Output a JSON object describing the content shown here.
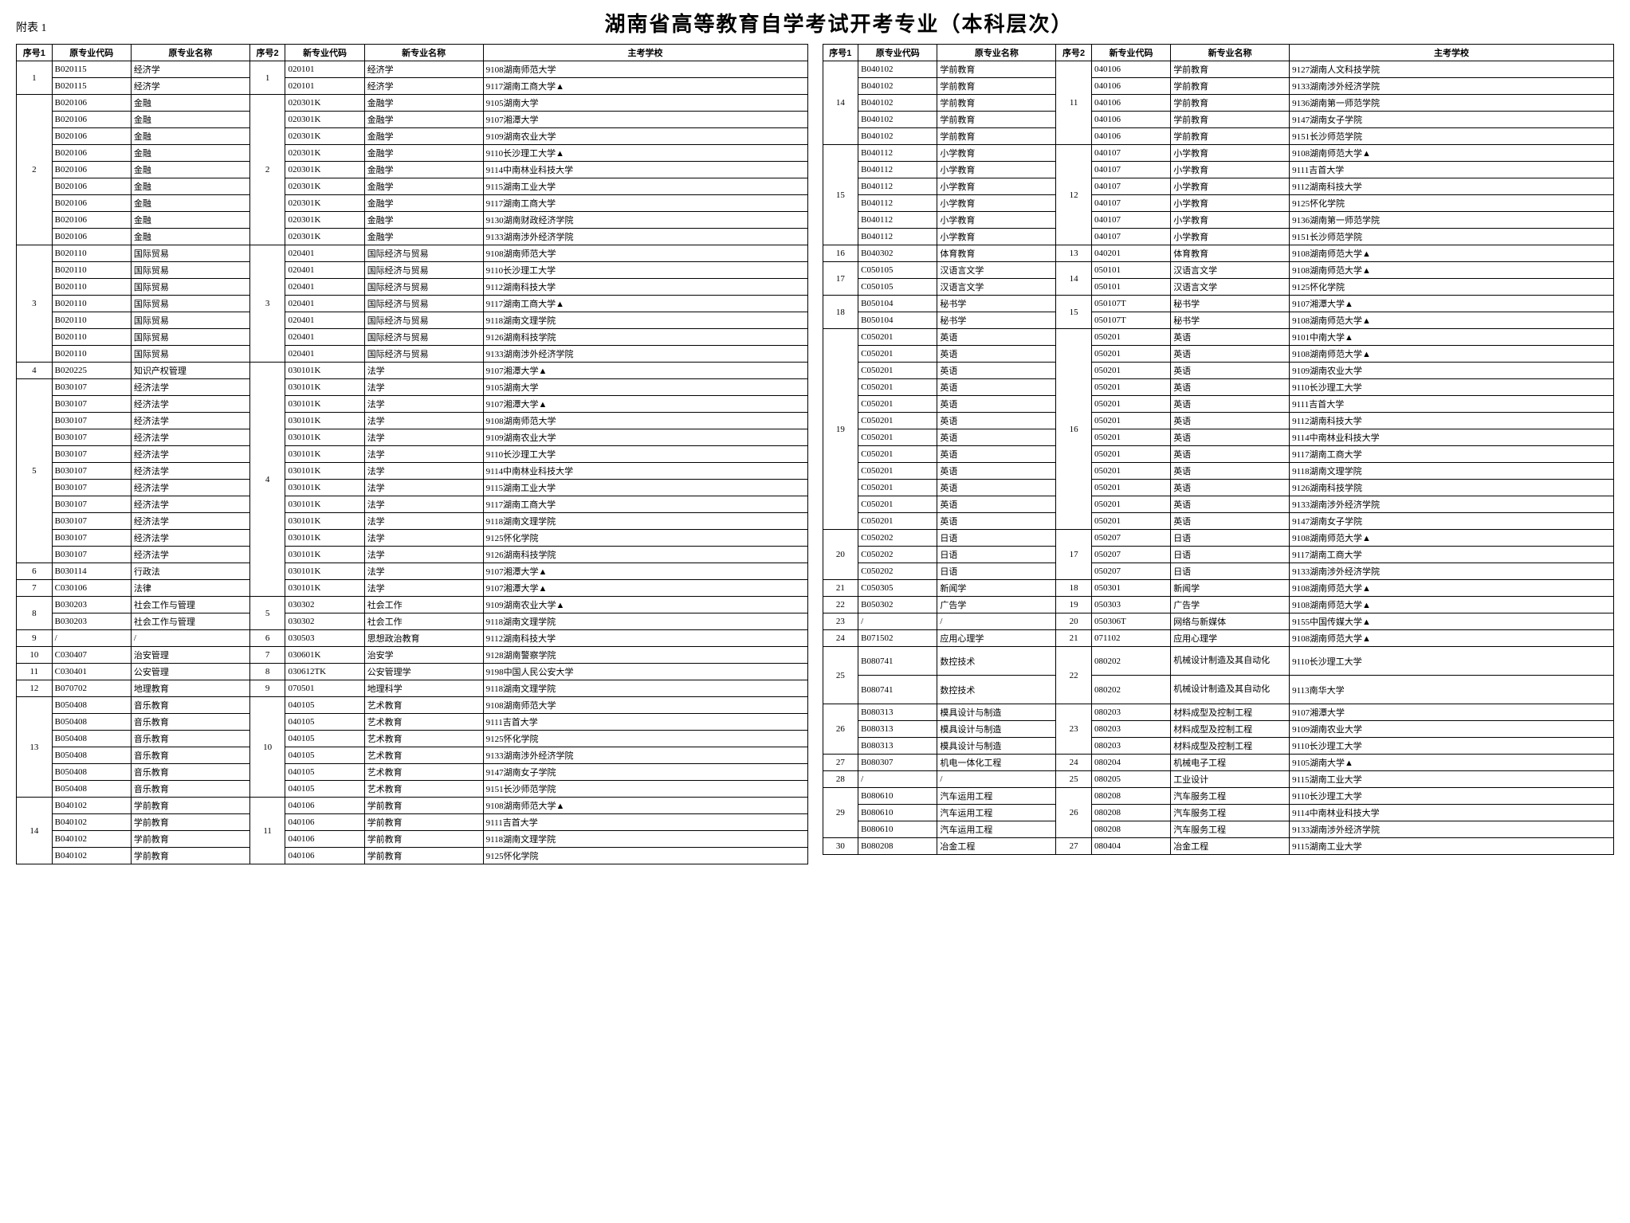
{
  "appendix_label": "附表 1",
  "title": "湖南省高等教育自学考试开考专业（本科层次）",
  "headers": {
    "seq1": "序号1",
    "oldCode": "原专业代码",
    "oldName": "原专业名称",
    "seq2": "序号2",
    "newCode": "新专业代码",
    "newName": "新专业名称",
    "school": "主考学校"
  },
  "left": [
    {
      "s1": "1",
      "r1": 2,
      "oc": "B020115",
      "on": "经济学",
      "s2": "1",
      "r2": 2,
      "nc": "020101",
      "nn": "经济学",
      "sc": "9108湖南师范大学"
    },
    {
      "oc": "B020115",
      "on": "经济学",
      "nc": "020101",
      "nn": "经济学",
      "sc": "9117湖南工商大学▲"
    },
    {
      "s1": "2",
      "r1": 9,
      "oc": "B020106",
      "on": "金融",
      "s2": "2",
      "r2": 9,
      "nc": "020301K",
      "nn": "金融学",
      "sc": "9105湖南大学"
    },
    {
      "oc": "B020106",
      "on": "金融",
      "nc": "020301K",
      "nn": "金融学",
      "sc": "9107湘潭大学"
    },
    {
      "oc": "B020106",
      "on": "金融",
      "nc": "020301K",
      "nn": "金融学",
      "sc": "9109湖南农业大学"
    },
    {
      "oc": "B020106",
      "on": "金融",
      "nc": "020301K",
      "nn": "金融学",
      "sc": "9110长沙理工大学▲"
    },
    {
      "oc": "B020106",
      "on": "金融",
      "nc": "020301K",
      "nn": "金融学",
      "sc": "9114中南林业科技大学"
    },
    {
      "oc": "B020106",
      "on": "金融",
      "nc": "020301K",
      "nn": "金融学",
      "sc": "9115湖南工业大学"
    },
    {
      "oc": "B020106",
      "on": "金融",
      "nc": "020301K",
      "nn": "金融学",
      "sc": "9117湖南工商大学"
    },
    {
      "oc": "B020106",
      "on": "金融",
      "nc": "020301K",
      "nn": "金融学",
      "sc": "9130湖南财政经济学院"
    },
    {
      "oc": "B020106",
      "on": "金融",
      "nc": "020301K",
      "nn": "金融学",
      "sc": "9133湖南涉外经济学院"
    },
    {
      "s1": "3",
      "r1": 7,
      "oc": "B020110",
      "on": "国际贸易",
      "s2": "3",
      "r2": 7,
      "nc": "020401",
      "nn": "国际经济与贸易",
      "sc": "9108湖南师范大学"
    },
    {
      "oc": "B020110",
      "on": "国际贸易",
      "nc": "020401",
      "nn": "国际经济与贸易",
      "sc": "9110长沙理工大学"
    },
    {
      "oc": "B020110",
      "on": "国际贸易",
      "nc": "020401",
      "nn": "国际经济与贸易",
      "sc": "9112湖南科技大学"
    },
    {
      "oc": "B020110",
      "on": "国际贸易",
      "nc": "020401",
      "nn": "国际经济与贸易",
      "sc": "9117湖南工商大学▲"
    },
    {
      "oc": "B020110",
      "on": "国际贸易",
      "nc": "020401",
      "nn": "国际经济与贸易",
      "sc": "9118湖南文理学院"
    },
    {
      "oc": "B020110",
      "on": "国际贸易",
      "nc": "020401",
      "nn": "国际经济与贸易",
      "sc": "9126湖南科技学院"
    },
    {
      "oc": "B020110",
      "on": "国际贸易",
      "nc": "020401",
      "nn": "国际经济与贸易",
      "sc": "9133湖南涉外经济学院"
    },
    {
      "s1": "4",
      "r1": 1,
      "oc": "B020225",
      "on": "知识产权管理",
      "s2": "4",
      "r2": 14,
      "nc": "030101K",
      "nn": "法学",
      "sc": "9107湘潭大学▲"
    },
    {
      "s1": "5",
      "r1": 11,
      "oc": "B030107",
      "on": "经济法学",
      "nc": "030101K",
      "nn": "法学",
      "sc": "9105湖南大学"
    },
    {
      "oc": "B030107",
      "on": "经济法学",
      "nc": "030101K",
      "nn": "法学",
      "sc": "9107湘潭大学▲"
    },
    {
      "oc": "B030107",
      "on": "经济法学",
      "nc": "030101K",
      "nn": "法学",
      "sc": "9108湖南师范大学"
    },
    {
      "oc": "B030107",
      "on": "经济法学",
      "nc": "030101K",
      "nn": "法学",
      "sc": "9109湖南农业大学"
    },
    {
      "oc": "B030107",
      "on": "经济法学",
      "nc": "030101K",
      "nn": "法学",
      "sc": "9110长沙理工大学"
    },
    {
      "oc": "B030107",
      "on": "经济法学",
      "nc": "030101K",
      "nn": "法学",
      "sc": "9114中南林业科技大学"
    },
    {
      "oc": "B030107",
      "on": "经济法学",
      "nc": "030101K",
      "nn": "法学",
      "sc": "9115湖南工业大学"
    },
    {
      "oc": "B030107",
      "on": "经济法学",
      "nc": "030101K",
      "nn": "法学",
      "sc": "9117湖南工商大学"
    },
    {
      "oc": "B030107",
      "on": "经济法学",
      "nc": "030101K",
      "nn": "法学",
      "sc": "9118湖南文理学院"
    },
    {
      "oc": "B030107",
      "on": "经济法学",
      "nc": "030101K",
      "nn": "法学",
      "sc": "9125怀化学院"
    },
    {
      "oc": "B030107",
      "on": "经济法学",
      "nc": "030101K",
      "nn": "法学",
      "sc": "9126湖南科技学院"
    },
    {
      "s1": "6",
      "r1": 1,
      "oc": "B030114",
      "on": "行政法",
      "nc": "030101K",
      "nn": "法学",
      "sc": "9107湘潭大学▲"
    },
    {
      "s1": "7",
      "r1": 1,
      "oc": "C030106",
      "on": "法律",
      "nc": "030101K",
      "nn": "法学",
      "sc": "9107湘潭大学▲"
    },
    {
      "s1": "8",
      "r1": 2,
      "oc": "B030203",
      "on": "社会工作与管理",
      "s2": "5",
      "r2": 2,
      "nc": "030302",
      "nn": "社会工作",
      "sc": "9109湖南农业大学▲"
    },
    {
      "oc": "B030203",
      "on": "社会工作与管理",
      "nc": "030302",
      "nn": "社会工作",
      "sc": "9118湖南文理学院"
    },
    {
      "s1": "9",
      "r1": 1,
      "oc": "/",
      "on": "/",
      "s2": "6",
      "r2": 1,
      "nc": "030503",
      "nn": "思想政治教育",
      "sc": "9112湖南科技大学"
    },
    {
      "s1": "10",
      "r1": 1,
      "oc": "C030407",
      "on": "治安管理",
      "s2": "7",
      "r2": 1,
      "nc": "030601K",
      "nn": "治安学",
      "sc": "9128湖南警察学院"
    },
    {
      "s1": "11",
      "r1": 1,
      "oc": "C030401",
      "on": "公安管理",
      "s2": "8",
      "r2": 1,
      "nc": "030612TK",
      "nn": "公安管理学",
      "sc": "9198中国人民公安大学"
    },
    {
      "s1": "12",
      "r1": 1,
      "oc": "B070702",
      "on": "地理教育",
      "s2": "9",
      "r2": 1,
      "nc": "070501",
      "nn": "地理科学",
      "sc": "9118湖南文理学院"
    },
    {
      "s1": "13",
      "r1": 6,
      "oc": "B050408",
      "on": "音乐教育",
      "s2": "10",
      "r2": 6,
      "nc": "040105",
      "nn": "艺术教育",
      "sc": "9108湖南师范大学"
    },
    {
      "oc": "B050408",
      "on": "音乐教育",
      "nc": "040105",
      "nn": "艺术教育",
      "sc": "9111吉首大学"
    },
    {
      "oc": "B050408",
      "on": "音乐教育",
      "nc": "040105",
      "nn": "艺术教育",
      "sc": "9125怀化学院"
    },
    {
      "oc": "B050408",
      "on": "音乐教育",
      "nc": "040105",
      "nn": "艺术教育",
      "sc": "9133湖南涉外经济学院"
    },
    {
      "oc": "B050408",
      "on": "音乐教育",
      "nc": "040105",
      "nn": "艺术教育",
      "sc": "9147湖南女子学院"
    },
    {
      "oc": "B050408",
      "on": "音乐教育",
      "nc": "040105",
      "nn": "艺术教育",
      "sc": "9151长沙师范学院"
    },
    {
      "s1": "14",
      "r1": 4,
      "oc": "B040102",
      "on": "学前教育",
      "s2": "11",
      "r2": 4,
      "nc": "040106",
      "nn": "学前教育",
      "sc": "9108湖南师范大学▲"
    },
    {
      "oc": "B040102",
      "on": "学前教育",
      "nc": "040106",
      "nn": "学前教育",
      "sc": "9111吉首大学"
    },
    {
      "oc": "B040102",
      "on": "学前教育",
      "nc": "040106",
      "nn": "学前教育",
      "sc": "9118湖南文理学院"
    },
    {
      "oc": "B040102",
      "on": "学前教育",
      "nc": "040106",
      "nn": "学前教育",
      "sc": "9125怀化学院"
    }
  ],
  "right": [
    {
      "s1": "14",
      "r1": 5,
      "oc": "B040102",
      "on": "学前教育",
      "s2": "11",
      "r2": 5,
      "nc": "040106",
      "nn": "学前教育",
      "sc": "9127湖南人文科技学院"
    },
    {
      "oc": "B040102",
      "on": "学前教育",
      "nc": "040106",
      "nn": "学前教育",
      "sc": "9133湖南涉外经济学院"
    },
    {
      "oc": "B040102",
      "on": "学前教育",
      "nc": "040106",
      "nn": "学前教育",
      "sc": "9136湖南第一师范学院"
    },
    {
      "oc": "B040102",
      "on": "学前教育",
      "nc": "040106",
      "nn": "学前教育",
      "sc": "9147湖南女子学院"
    },
    {
      "oc": "B040102",
      "on": "学前教育",
      "nc": "040106",
      "nn": "学前教育",
      "sc": "9151长沙师范学院"
    },
    {
      "s1": "15",
      "r1": 6,
      "oc": "B040112",
      "on": "小学教育",
      "s2": "12",
      "r2": 6,
      "nc": "040107",
      "nn": "小学教育",
      "sc": "9108湖南师范大学▲"
    },
    {
      "oc": "B040112",
      "on": "小学教育",
      "nc": "040107",
      "nn": "小学教育",
      "sc": "9111吉首大学"
    },
    {
      "oc": "B040112",
      "on": "小学教育",
      "nc": "040107",
      "nn": "小学教育",
      "sc": "9112湖南科技大学"
    },
    {
      "oc": "B040112",
      "on": "小学教育",
      "nc": "040107",
      "nn": "小学教育",
      "sc": "9125怀化学院"
    },
    {
      "oc": "B040112",
      "on": "小学教育",
      "nc": "040107",
      "nn": "小学教育",
      "sc": "9136湖南第一师范学院"
    },
    {
      "oc": "B040112",
      "on": "小学教育",
      "nc": "040107",
      "nn": "小学教育",
      "sc": "9151长沙师范学院"
    },
    {
      "s1": "16",
      "r1": 1,
      "oc": "B040302",
      "on": "体育教育",
      "s2": "13",
      "r2": 1,
      "nc": "040201",
      "nn": "体育教育",
      "sc": "9108湖南师范大学▲"
    },
    {
      "s1": "17",
      "r1": 2,
      "oc": "C050105",
      "on": "汉语言文学",
      "s2": "14",
      "r2": 2,
      "nc": "050101",
      "nn": "汉语言文学",
      "sc": "9108湖南师范大学▲"
    },
    {
      "oc": "C050105",
      "on": "汉语言文学",
      "nc": "050101",
      "nn": "汉语言文学",
      "sc": "9125怀化学院"
    },
    {
      "s1": "18",
      "r1": 2,
      "oc": "B050104",
      "on": "秘书学",
      "s2": "15",
      "r2": 2,
      "nc": "050107T",
      "nn": "秘书学",
      "sc": "9107湘潭大学▲"
    },
    {
      "oc": "B050104",
      "on": "秘书学",
      "nc": "050107T",
      "nn": "秘书学",
      "sc": "9108湖南师范大学▲"
    },
    {
      "s1": "19",
      "r1": 12,
      "oc": "C050201",
      "on": "英语",
      "s2": "16",
      "r2": 12,
      "nc": "050201",
      "nn": "英语",
      "sc": "9101中南大学▲"
    },
    {
      "oc": "C050201",
      "on": "英语",
      "nc": "050201",
      "nn": "英语",
      "sc": "9108湖南师范大学▲"
    },
    {
      "oc": "C050201",
      "on": "英语",
      "nc": "050201",
      "nn": "英语",
      "sc": "9109湖南农业大学"
    },
    {
      "oc": "C050201",
      "on": "英语",
      "nc": "050201",
      "nn": "英语",
      "sc": "9110长沙理工大学"
    },
    {
      "oc": "C050201",
      "on": "英语",
      "nc": "050201",
      "nn": "英语",
      "sc": "9111吉首大学"
    },
    {
      "oc": "C050201",
      "on": "英语",
      "nc": "050201",
      "nn": "英语",
      "sc": "9112湖南科技大学"
    },
    {
      "oc": "C050201",
      "on": "英语",
      "nc": "050201",
      "nn": "英语",
      "sc": "9114中南林业科技大学"
    },
    {
      "oc": "C050201",
      "on": "英语",
      "nc": "050201",
      "nn": "英语",
      "sc": "9117湖南工商大学"
    },
    {
      "oc": "C050201",
      "on": "英语",
      "nc": "050201",
      "nn": "英语",
      "sc": "9118湖南文理学院"
    },
    {
      "oc": "C050201",
      "on": "英语",
      "nc": "050201",
      "nn": "英语",
      "sc": "9126湖南科技学院"
    },
    {
      "oc": "C050201",
      "on": "英语",
      "nc": "050201",
      "nn": "英语",
      "sc": "9133湖南涉外经济学院"
    },
    {
      "oc": "C050201",
      "on": "英语",
      "nc": "050201",
      "nn": "英语",
      "sc": "9147湖南女子学院"
    },
    {
      "s1": "20",
      "r1": 3,
      "oc": "C050202",
      "on": "日语",
      "s2": "17",
      "r2": 3,
      "nc": "050207",
      "nn": "日语",
      "sc": "9108湖南师范大学▲"
    },
    {
      "oc": "C050202",
      "on": "日语",
      "nc": "050207",
      "nn": "日语",
      "sc": "9117湖南工商大学"
    },
    {
      "oc": "C050202",
      "on": "日语",
      "nc": "050207",
      "nn": "日语",
      "sc": "9133湖南涉外经济学院"
    },
    {
      "s1": "21",
      "r1": 1,
      "oc": "C050305",
      "on": "新闻学",
      "s2": "18",
      "r2": 1,
      "nc": "050301",
      "nn": "新闻学",
      "sc": "9108湖南师范大学▲"
    },
    {
      "s1": "22",
      "r1": 1,
      "oc": "B050302",
      "on": "广告学",
      "s2": "19",
      "r2": 1,
      "nc": "050303",
      "nn": "广告学",
      "sc": "9108湖南师范大学▲"
    },
    {
      "s1": "23",
      "r1": 1,
      "oc": "/",
      "on": "/",
      "s2": "20",
      "r2": 1,
      "nc": "050306T",
      "nn": "网络与新媒体",
      "sc": "9155中国传媒大学▲"
    },
    {
      "s1": "24",
      "r1": 1,
      "oc": "B071502",
      "on": "应用心理学",
      "s2": "21",
      "r2": 1,
      "nc": "071102",
      "nn": "应用心理学",
      "sc": "9108湖南师范大学▲"
    },
    {
      "s1": "25",
      "r1": 2,
      "oc": "B080741",
      "on": "数控技术",
      "s2": "22",
      "r2": 2,
      "nc": "080202",
      "nn": "机械设计制造及其自动化",
      "sc": "9110长沙理工大学",
      "tall": true
    },
    {
      "oc": "B080741",
      "on": "数控技术",
      "nc": "080202",
      "nn": "机械设计制造及其自动化",
      "sc": "9113南华大学",
      "tall": true
    },
    {
      "s1": "26",
      "r1": 3,
      "oc": "B080313",
      "on": "模具设计与制造",
      "s2": "23",
      "r2": 3,
      "nc": "080203",
      "nn": "材料成型及控制工程",
      "sc": "9107湘潭大学"
    },
    {
      "oc": "B080313",
      "on": "模具设计与制造",
      "nc": "080203",
      "nn": "材料成型及控制工程",
      "sc": "9109湖南农业大学"
    },
    {
      "oc": "B080313",
      "on": "模具设计与制造",
      "nc": "080203",
      "nn": "材料成型及控制工程",
      "sc": "9110长沙理工大学"
    },
    {
      "s1": "27",
      "r1": 1,
      "oc": "B080307",
      "on": "机电一体化工程",
      "s2": "24",
      "r2": 1,
      "nc": "080204",
      "nn": "机械电子工程",
      "sc": "9105湖南大学▲"
    },
    {
      "s1": "28",
      "r1": 1,
      "oc": "/",
      "on": "/",
      "s2": "25",
      "r2": 1,
      "nc": "080205",
      "nn": "工业设计",
      "sc": "9115湖南工业大学"
    },
    {
      "s1": "29",
      "r1": 3,
      "oc": "B080610",
      "on": "汽车运用工程",
      "s2": "26",
      "r2": 3,
      "nc": "080208",
      "nn": "汽车服务工程",
      "sc": "9110长沙理工大学"
    },
    {
      "oc": "B080610",
      "on": "汽车运用工程",
      "nc": "080208",
      "nn": "汽车服务工程",
      "sc": "9114中南林业科技大学"
    },
    {
      "oc": "B080610",
      "on": "汽车运用工程",
      "nc": "080208",
      "nn": "汽车服务工程",
      "sc": "9133湖南涉外经济学院"
    },
    {
      "s1": "30",
      "r1": 1,
      "oc": "B080208",
      "on": "冶金工程",
      "s2": "27",
      "r2": 1,
      "nc": "080404",
      "nn": "冶金工程",
      "sc": "9115湖南工业大学"
    }
  ]
}
